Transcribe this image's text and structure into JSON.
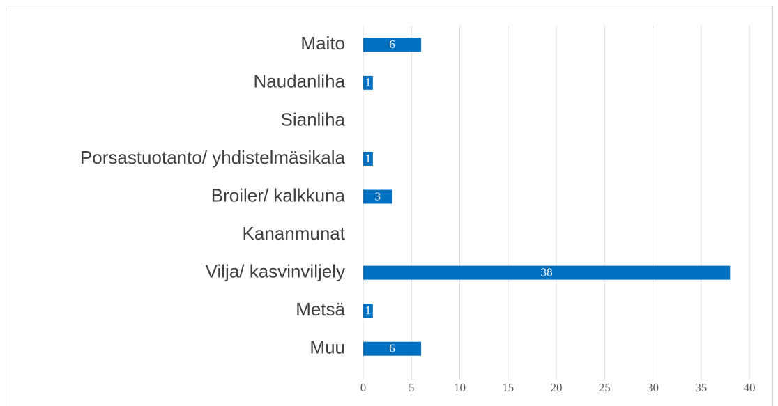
{
  "chart_data": {
    "type": "bar",
    "orientation": "horizontal",
    "categories": [
      "Maito",
      "Naudanliha",
      "Sianliha",
      "Porsastuotanto/ yhdistelmäsikala",
      "Broiler/ kalkkuna",
      "Kananmunat",
      "Vilja/ kasvinviljely",
      "Metsä",
      "Muu"
    ],
    "values": [
      6,
      1,
      0,
      1,
      3,
      0,
      38,
      1,
      6
    ],
    "color": "#0070c0",
    "xlim": [
      0,
      40
    ],
    "xticks": [
      0,
      5,
      10,
      15,
      20,
      25,
      30,
      35,
      40
    ],
    "grid": true
  }
}
